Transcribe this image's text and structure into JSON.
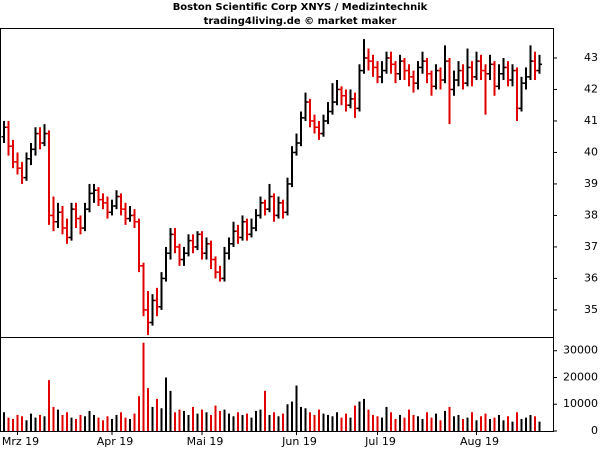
{
  "chart_data": [
    {
      "type": "ohlc",
      "title": "Boston Scientific Corp XNYS / Medizintechnik",
      "subtitle": "trading4living.de © market maker",
      "up_color": "#000000",
      "down_color": "#e00000",
      "xticks": [
        {
          "value": 3,
          "label": "Mrz 19"
        },
        {
          "value": 24,
          "label": "Apr 19"
        },
        {
          "value": 44,
          "label": "Mai 19"
        },
        {
          "value": 65,
          "label": "Jun 19"
        },
        {
          "value": 83,
          "label": "Jul 19"
        },
        {
          "value": 105,
          "label": "Aug 19"
        }
      ],
      "ylim": [
        34.14,
        43.92
      ],
      "yticks": [
        35,
        36,
        37,
        38,
        39,
        40,
        41,
        42,
        43
      ],
      "open": [
        40.5,
        40.8,
        40.2,
        39.7,
        39.5,
        39.2,
        39.8,
        40.1,
        40.6,
        40.3,
        40.6,
        38.0,
        37.8,
        38.1,
        37.6,
        37.3,
        38.2,
        37.9,
        37.6,
        38.2,
        38.7,
        38.8,
        38.5,
        38.4,
        38.1,
        38.3,
        38.6,
        38.2,
        37.9,
        38.0,
        37.8,
        36.4,
        35.0,
        34.6,
        35.3,
        35.1,
        36.0,
        36.8,
        37.4,
        37.0,
        36.6,
        36.8,
        37.2,
        37.0,
        37.4,
        36.8,
        37.1,
        36.6,
        36.2,
        36.0,
        36.8,
        37.1,
        37.5,
        37.3,
        37.8,
        37.4,
        37.6,
        38.0,
        38.4,
        38.2,
        38.6,
        38.0,
        38.4,
        38.1,
        39.0,
        40.0,
        40.3,
        41.1,
        41.6,
        41.0,
        40.8,
        40.6,
        41.0,
        41.3,
        41.6,
        42.0,
        41.8,
        41.5,
        41.7,
        41.4,
        42.6,
        43.0,
        42.9,
        42.7,
        42.4,
        42.6,
        43.0,
        42.8,
        42.5,
        42.9,
        42.6,
        42.4,
        42.2,
        42.7,
        42.9,
        42.5,
        42.1,
        42.6,
        42.3,
        42.9,
        42.0,
        42.3,
        42.6,
        42.2,
        42.7,
        42.4,
        42.9,
        42.6,
        42.5,
        42.8,
        42.1,
        42.5,
        42.7,
        42.3,
        42.6,
        41.4,
        42.2,
        42.4,
        42.9,
        42.6
      ],
      "high": [
        41.0,
        41.0,
        40.4,
        40.0,
        39.7,
        40.0,
        40.3,
        40.8,
        40.8,
        40.9,
        40.7,
        38.6,
        38.4,
        38.3,
        37.9,
        38.4,
        38.4,
        38.0,
        38.4,
        39.0,
        39.0,
        38.9,
        38.7,
        38.6,
        38.5,
        38.8,
        38.7,
        38.4,
        38.3,
        38.2,
        37.9,
        36.5,
        35.6,
        35.5,
        35.7,
        36.2,
        37.0,
        37.6,
        37.6,
        37.1,
        37.0,
        37.4,
        37.4,
        37.5,
        37.5,
        37.3,
        37.2,
        36.7,
        36.4,
        37.0,
        37.3,
        37.8,
        37.7,
        38.0,
        37.9,
        37.9,
        38.2,
        38.6,
        38.5,
        39.0,
        38.7,
        38.6,
        38.5,
        39.2,
        40.2,
        40.6,
        41.3,
        41.9,
        41.7,
        41.2,
        41.0,
        41.2,
        41.6,
        42.2,
        42.3,
        42.1,
        42.0,
        42.0,
        41.9,
        42.8,
        43.6,
        43.3,
        43.1,
        42.9,
        42.9,
        43.2,
        43.2,
        42.9,
        43.1,
        43.0,
        42.8,
        42.6,
        42.9,
        43.2,
        43.0,
        42.6,
        42.8,
        42.7,
        43.4,
        43.0,
        42.6,
        42.9,
        42.8,
        43.3,
        42.9,
        43.2,
        43.1,
        42.8,
        43.1,
        42.9,
        42.8,
        43.0,
        42.9,
        42.8,
        42.7,
        42.4,
        42.7,
        43.4,
        43.2,
        43.1
      ],
      "low": [
        40.3,
        39.9,
        39.5,
        39.3,
        39.0,
        39.1,
        39.6,
        39.9,
        40.1,
        40.2,
        37.7,
        37.5,
        37.6,
        37.4,
        37.1,
        37.2,
        37.6,
        37.4,
        37.5,
        38.1,
        38.4,
        38.3,
        38.2,
        37.9,
        38.0,
        38.2,
        38.0,
        37.7,
        37.8,
        37.6,
        36.2,
        34.8,
        34.2,
        34.5,
        34.8,
        35.0,
        35.9,
        36.6,
        36.8,
        36.4,
        36.4,
        36.7,
        36.8,
        36.9,
        36.6,
        36.6,
        36.3,
        36.0,
        35.9,
        35.9,
        36.6,
        37.0,
        37.1,
        37.2,
        37.2,
        37.3,
        37.5,
        37.9,
        38.0,
        38.1,
        37.8,
        37.9,
        37.9,
        38.0,
        38.9,
        39.9,
        40.2,
        41.0,
        40.8,
        40.6,
        40.4,
        40.5,
        40.9,
        41.2,
        41.5,
        41.5,
        41.3,
        41.4,
        41.1,
        41.3,
        42.5,
        42.6,
        42.4,
        42.2,
        42.2,
        42.5,
        42.5,
        42.2,
        42.3,
        42.3,
        42.1,
        41.9,
        42.0,
        42.5,
        42.2,
        41.8,
        42.0,
        42.0,
        42.2,
        40.9,
        41.8,
        42.1,
        42.0,
        42.1,
        42.1,
        42.3,
        42.3,
        41.2,
        42.3,
        41.8,
        42.0,
        42.3,
        42.1,
        42.1,
        41.0,
        41.3,
        42.0,
        42.3,
        42.3,
        42.5
      ],
      "close": [
        40.8,
        40.2,
        39.7,
        39.5,
        39.2,
        39.8,
        40.1,
        40.6,
        40.3,
        40.6,
        38.0,
        37.8,
        38.1,
        37.6,
        37.3,
        38.2,
        37.9,
        37.6,
        38.2,
        38.7,
        38.8,
        38.5,
        38.4,
        38.1,
        38.3,
        38.6,
        38.2,
        37.9,
        38.0,
        37.8,
        36.4,
        35.0,
        34.6,
        35.3,
        35.1,
        36.0,
        36.8,
        37.4,
        37.0,
        36.6,
        36.8,
        37.2,
        37.0,
        37.4,
        36.8,
        37.1,
        36.6,
        36.2,
        36.0,
        36.8,
        37.1,
        37.5,
        37.3,
        37.8,
        37.4,
        37.6,
        38.0,
        38.4,
        38.2,
        38.6,
        38.0,
        38.4,
        38.1,
        39.0,
        40.0,
        40.3,
        41.1,
        41.6,
        41.0,
        40.8,
        40.6,
        41.0,
        41.3,
        41.6,
        42.0,
        41.8,
        41.5,
        41.7,
        41.4,
        42.6,
        43.0,
        42.9,
        42.7,
        42.4,
        42.6,
        43.0,
        42.8,
        42.5,
        42.9,
        42.6,
        42.4,
        42.2,
        42.7,
        42.9,
        42.5,
        42.1,
        42.6,
        42.3,
        42.9,
        42.0,
        42.3,
        42.6,
        42.2,
        42.7,
        42.4,
        42.9,
        42.6,
        42.5,
        42.8,
        42.1,
        42.5,
        42.7,
        42.3,
        42.6,
        41.4,
        42.2,
        42.4,
        42.9,
        42.6,
        42.8
      ]
    },
    {
      "type": "bar",
      "ylim": [
        0,
        34760
      ],
      "yticks": [
        0,
        10000,
        20000,
        30000
      ],
      "values": [
        7000,
        5000,
        4500,
        6000,
        5500,
        4000,
        6500,
        5000,
        6000,
        5500,
        19000,
        9000,
        8000,
        6000,
        7000,
        5000,
        4500,
        6000,
        5500,
        7500,
        6000,
        5000,
        4000,
        5500,
        4500,
        6000,
        7000,
        5000,
        4500,
        6500,
        13000,
        33000,
        16000,
        9000,
        12000,
        8500,
        20000,
        15000,
        7000,
        8000,
        7500,
        6000,
        9000,
        6500,
        8000,
        7000,
        6000,
        9500,
        7500,
        8000,
        6500,
        5500,
        7000,
        6000,
        6500,
        5000,
        7500,
        8000,
        15000,
        6000,
        7000,
        5500,
        6500,
        10000,
        11000,
        17000,
        9000,
        8500,
        7000,
        6000,
        8000,
        6500,
        6000,
        5500,
        7000,
        5000,
        6500,
        5000,
        9500,
        11000,
        12000,
        8000,
        6000,
        5500,
        5000,
        9000,
        7000,
        4500,
        6000,
        5000,
        8000,
        6000,
        5500,
        4500,
        7000,
        5000,
        6500,
        4000,
        7500,
        9000,
        5500,
        6000,
        4500,
        5000,
        7000,
        4000,
        5500,
        6500,
        4500,
        5000,
        6000,
        4000,
        5500,
        3500,
        7000,
        4500,
        5000,
        6000,
        5500,
        3500
      ]
    }
  ]
}
